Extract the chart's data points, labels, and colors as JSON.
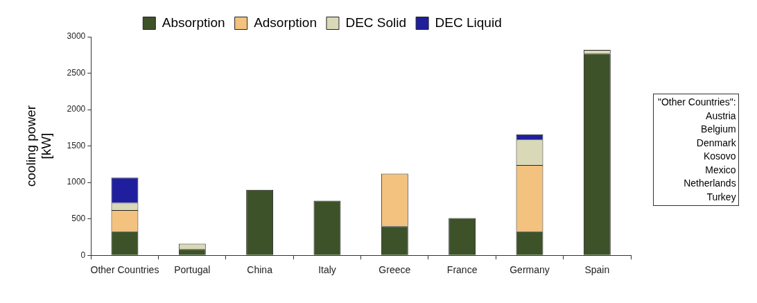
{
  "chart_data": {
    "type": "bar",
    "stacked": true,
    "ylabel": "cooling power\n[kW]",
    "categories": [
      "Other Countries",
      "Portugal",
      "China",
      "Italy",
      "Greece",
      "France",
      "Germany",
      "Spain"
    ],
    "series": [
      {
        "name": "Absorption",
        "color": "#3d5228",
        "values": [
          330,
          85,
          900,
          750,
          400,
          510,
          330,
          2770
        ]
      },
      {
        "name": "Adsorption",
        "color": "#f2c27e",
        "values": [
          290,
          0,
          0,
          0,
          720,
          0,
          910,
          0
        ]
      },
      {
        "name": "DEC Solid",
        "color": "#d9d9b8",
        "values": [
          100,
          75,
          0,
          0,
          0,
          0,
          350,
          50
        ]
      },
      {
        "name": "DEC Liquid",
        "color": "#1f1f9e",
        "values": [
          345,
          0,
          0,
          0,
          0,
          0,
          70,
          0
        ]
      }
    ],
    "ylim": [
      0,
      3000
    ],
    "yticks": [
      0,
      500,
      1000,
      1500,
      2000,
      2500,
      3000
    ],
    "grid": false,
    "legend": "top",
    "annotations": [
      "\"Other Countries\":",
      "Austria",
      "Belgium",
      "Denmark",
      "Kosovo",
      "Mexico",
      "Netherlands",
      "Turkey"
    ]
  }
}
